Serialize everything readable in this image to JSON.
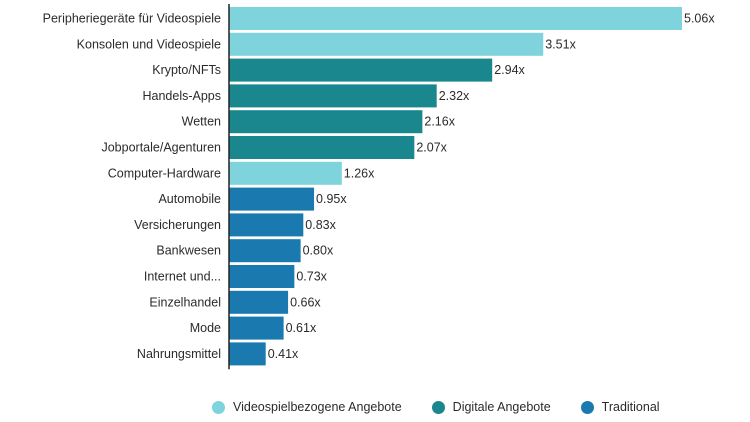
{
  "chart_data": {
    "type": "bar",
    "orientation": "horizontal",
    "categories": [
      "Peripheriegeräte für Videospiele",
      "Konsolen und Videospiele",
      "Krypto/NFTs",
      "Handels-Apps",
      "Wetten",
      "Jobportale/Agenturen",
      "Computer-Hardware",
      "Automobile",
      "Versicherungen",
      "Bankwesen",
      "Internet und...",
      "Einzelhandel",
      "Mode",
      "Nahrungsmittel"
    ],
    "values": [
      5.06,
      3.51,
      2.94,
      2.32,
      2.16,
      2.07,
      1.26,
      0.95,
      0.83,
      0.8,
      0.73,
      0.66,
      0.61,
      0.41
    ],
    "value_labels": [
      "5.06x",
      "3.51x",
      "2.94x",
      "2.32x",
      "2.16x",
      "2.07x",
      "1.26x",
      "0.95x",
      "0.83x",
      "0.80x",
      "0.73x",
      "0.66x",
      "0.61x",
      "0.41x"
    ],
    "groups": [
      0,
      0,
      1,
      1,
      1,
      1,
      0,
      2,
      2,
      2,
      2,
      2,
      2,
      2
    ],
    "xlim": [
      0,
      5.06
    ],
    "grid": false,
    "legend_position": "bottom",
    "legend": [
      {
        "name": "Videospielbezogene Angebote",
        "color": "#7fd3dc"
      },
      {
        "name": "Digitale Angebote",
        "color": "#1a868e"
      },
      {
        "name": "Traditional",
        "color": "#1a7ab0"
      }
    ]
  }
}
